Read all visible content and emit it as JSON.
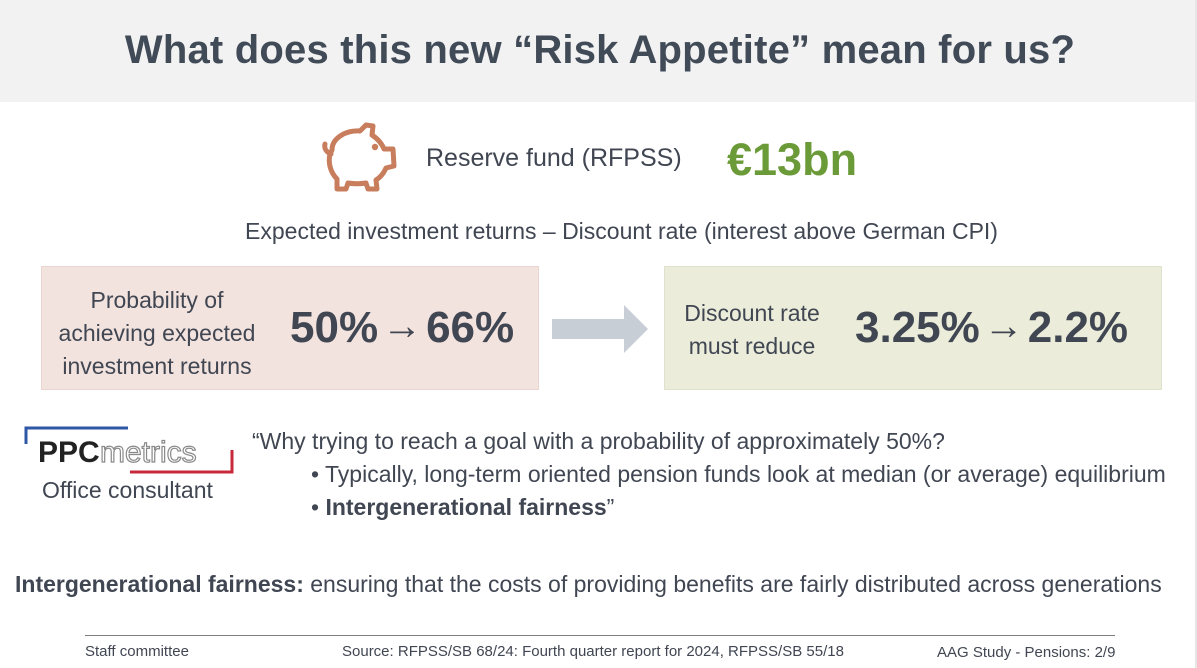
{
  "title": "What does this new “Risk Appetite” mean for us?",
  "reserve": {
    "icon": "piggy-bank-icon",
    "label": "Reserve fund (RFPSS)",
    "value": "€13bn",
    "value_color": "#6b9a38",
    "icon_color": "#c87d5c"
  },
  "subheading": "Expected investment returns – Discount rate (interest above German CPI)",
  "probability_box": {
    "label_lines": [
      "Probability of",
      "achieving expected",
      "investment returns"
    ],
    "from": "50%",
    "arrow": "→",
    "to": "66%"
  },
  "discount_box": {
    "label_lines": [
      "Discount rate",
      "must reduce"
    ],
    "from": "3.25%",
    "arrow": "→",
    "to": "2.2%"
  },
  "consultant": {
    "logo_bold": "PPC",
    "logo_light": "metrics",
    "label": "Office consultant"
  },
  "quote": {
    "line1": "“Why trying to reach a goal with a probability of approximately 50%?",
    "bullet1": "• Typically, long-term oriented pension funds look at median (or average) equilibrium",
    "bullet2_prefix": "• ",
    "bullet2_bold": "Intergenerational fairness",
    "bullet2_suffix": "”"
  },
  "definition": {
    "term": "Intergenerational fairness:",
    "text": " ensuring that the costs of providing benefits are fairly distributed across generations"
  },
  "footer": {
    "left": "Staff committee",
    "center": "Source: RFPSS/SB 68/24: Fourth quarter report for 2024, RFPSS/SB 55/18",
    "right": "AAG Study - Pensions: 2/9"
  }
}
